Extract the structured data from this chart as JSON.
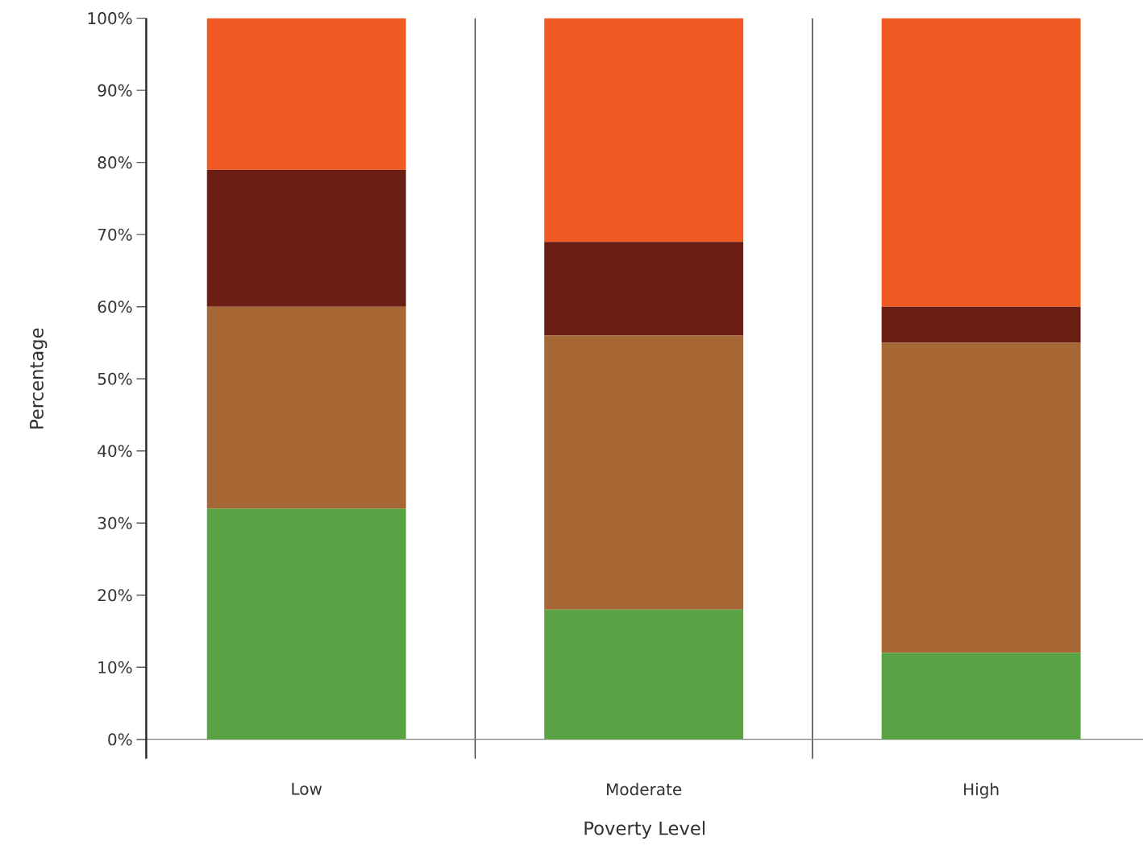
{
  "chart_data": {
    "type": "bar",
    "stacked": true,
    "xlabel": "Poverty Level",
    "ylabel": "Percentage",
    "categories": [
      "Low",
      "Moderate",
      "High"
    ],
    "series": [
      {
        "color": "#5aa345",
        "values": [
          32,
          18,
          12
        ]
      },
      {
        "color": "#a66735",
        "values": [
          28,
          38,
          43
        ]
      },
      {
        "color": "#6b1e14",
        "values": [
          19,
          13,
          5
        ]
      },
      {
        "color": "#f15a22",
        "values": [
          21,
          31,
          40
        ]
      }
    ],
    "ylim": [
      0,
      100
    ],
    "yticks": [
      {
        "value": 0,
        "label": "0%"
      },
      {
        "value": 10,
        "label": "10%"
      },
      {
        "value": 20,
        "label": "20%"
      },
      {
        "value": 30,
        "label": "30%"
      },
      {
        "value": 40,
        "label": "40%"
      },
      {
        "value": 50,
        "label": "50%"
      },
      {
        "value": 60,
        "label": "60%"
      },
      {
        "value": 70,
        "label": "70%"
      },
      {
        "value": 80,
        "label": "80%"
      },
      {
        "value": 90,
        "label": "90%"
      },
      {
        "value": 100,
        "label": "100%"
      }
    ]
  }
}
